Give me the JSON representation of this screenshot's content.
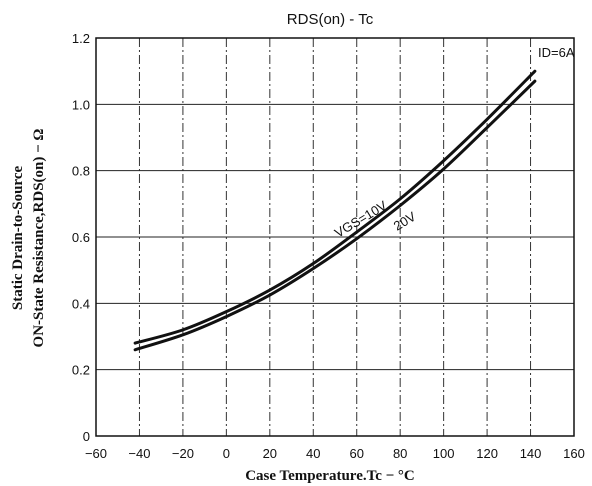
{
  "chart_data": {
    "type": "line",
    "title": "RDS(on) - Tc",
    "annotation": "ID=6A",
    "xlabel": "Case Temperature.Tc − °C",
    "ylabel_line1": "Static Drain-to-Source",
    "ylabel_line2": "ON-State Resistance,RDS(on) − Ω",
    "xlim": [
      -60,
      160
    ],
    "ylim": [
      0,
      1.2
    ],
    "xticks": [
      -60,
      -40,
      -20,
      0,
      20,
      40,
      60,
      80,
      100,
      120,
      140,
      160
    ],
    "xtick_labels": [
      "−60",
      "−40",
      "−20",
      "0",
      "20",
      "40",
      "60",
      "80",
      "100",
      "120",
      "140",
      "160"
    ],
    "yticks": [
      0,
      0.2,
      0.4,
      0.6,
      0.8,
      1.0,
      1.2
    ],
    "ytick_labels": [
      "0",
      "0.2",
      "0.4",
      "0.6",
      "0.8",
      "1.0",
      "1.2"
    ],
    "grid": true,
    "series": [
      {
        "name": "VGS=10V",
        "x": [
          -42,
          -20,
          0,
          20,
          40,
          60,
          80,
          100,
          120,
          142
        ],
        "y": [
          0.28,
          0.32,
          0.375,
          0.44,
          0.52,
          0.615,
          0.715,
          0.83,
          0.955,
          1.1
        ]
      },
      {
        "name": "20V",
        "x": [
          -42,
          -20,
          0,
          20,
          40,
          60,
          80,
          100,
          120,
          142
        ],
        "y": [
          0.26,
          0.305,
          0.36,
          0.425,
          0.505,
          0.595,
          0.695,
          0.805,
          0.93,
          1.07
        ]
      }
    ]
  }
}
